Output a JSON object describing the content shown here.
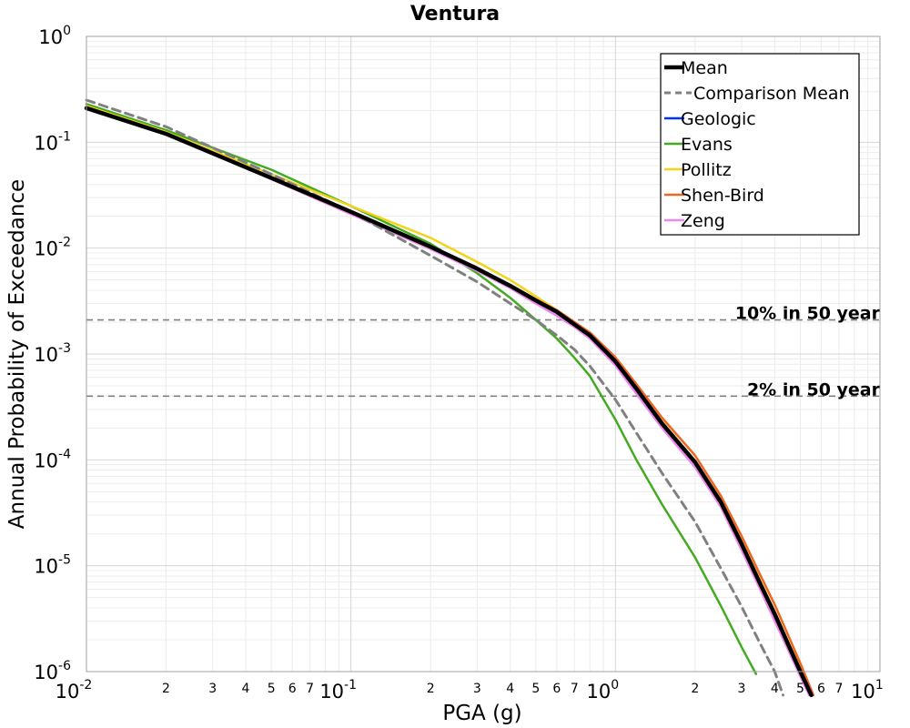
{
  "chart_data": {
    "type": "line",
    "title": "Ventura",
    "xlabel": "PGA (g)",
    "ylabel": "Annual Probability of Exceedance",
    "x_scale": "log",
    "y_scale": "log",
    "xlim": [
      0.01,
      10
    ],
    "ylim": [
      1e-06,
      1
    ],
    "grid": true,
    "legend_position": "top-right",
    "x_major_ticks": [
      {
        "value": 0.01,
        "base": "10",
        "exp": "-2"
      },
      {
        "value": 0.1,
        "base": "10",
        "exp": "-1"
      },
      {
        "value": 1,
        "base": "10",
        "exp": "0"
      },
      {
        "value": 10,
        "base": "10",
        "exp": "1"
      }
    ],
    "x_minor_tick_labels": [
      "2",
      "3",
      "4",
      "5",
      "6",
      "7"
    ],
    "y_major_ticks": [
      {
        "value": 1,
        "base": "10",
        "exp": "0"
      },
      {
        "value": 0.1,
        "base": "10",
        "exp": "-1"
      },
      {
        "value": 0.01,
        "base": "10",
        "exp": "-2"
      },
      {
        "value": 0.001,
        "base": "10",
        "exp": "-3"
      },
      {
        "value": 0.0001,
        "base": "10",
        "exp": "-4"
      },
      {
        "value": 1e-05,
        "base": "10",
        "exp": "-5"
      },
      {
        "value": 1e-06,
        "base": "10",
        "exp": "-6"
      }
    ],
    "reference_lines": [
      {
        "label": "10% in 50 year",
        "y": 0.0021,
        "color": "#808080"
      },
      {
        "label": "2% in 50 year",
        "y": 0.0004,
        "color": "#808080"
      }
    ],
    "series": [
      {
        "name": "Geologic",
        "color": "#0033ff",
        "width": 2.5,
        "dash": false,
        "x": [
          0.01,
          0.02,
          0.05,
          0.1,
          0.2,
          0.3,
          0.4,
          0.5,
          0.6,
          0.7,
          0.8,
          1.0,
          1.2,
          1.5,
          2.0,
          2.5,
          3.0,
          3.5,
          4.0,
          4.5,
          5.0,
          5.5
        ],
        "y": [
          0.21,
          0.12,
          0.046,
          0.022,
          0.0105,
          0.0064,
          0.0044,
          0.0032,
          0.0025,
          0.0019,
          0.0015,
          0.00085,
          0.00046,
          0.00022,
          9.5e-05,
          4e-05,
          1.6e-05,
          7e-06,
          3.5e-06,
          1.8e-06,
          1.1e-06,
          6e-07
        ]
      },
      {
        "name": "Evans",
        "color": "#44aa22",
        "width": 2.5,
        "dash": false,
        "x": [
          0.01,
          0.02,
          0.05,
          0.1,
          0.2,
          0.3,
          0.4,
          0.5,
          0.6,
          0.7,
          0.8,
          1.0,
          1.2,
          1.5,
          2.0,
          2.5,
          3.0,
          3.4
        ],
        "y": [
          0.23,
          0.13,
          0.055,
          0.025,
          0.011,
          0.0058,
          0.0034,
          0.0021,
          0.0014,
          0.00092,
          0.00062,
          0.00024,
          0.0001,
          3.8e-05,
          1.2e-05,
          4.2e-06,
          1.7e-06,
          9.5e-07
        ]
      },
      {
        "name": "Pollitz",
        "color": "#f2d41a",
        "width": 2.5,
        "dash": false,
        "x": [
          0.01,
          0.02,
          0.05,
          0.1,
          0.2,
          0.3,
          0.4,
          0.5,
          0.6,
          0.7,
          0.8,
          1.0,
          1.2,
          1.5,
          2.0,
          2.5,
          3.0,
          3.5,
          4.0,
          4.5,
          5.0,
          5.5
        ],
        "y": [
          0.22,
          0.125,
          0.05,
          0.025,
          0.0125,
          0.0074,
          0.005,
          0.0035,
          0.0026,
          0.002,
          0.0015,
          0.00088,
          0.00048,
          0.00023,
          9.8e-05,
          4.2e-05,
          1.7e-05,
          7.5e-06,
          3.7e-06,
          1.9e-06,
          1.1e-06,
          6e-07
        ]
      },
      {
        "name": "Shen-Bird",
        "color": "#ee6622",
        "width": 2.5,
        "dash": false,
        "x": [
          0.01,
          0.02,
          0.05,
          0.1,
          0.2,
          0.3,
          0.4,
          0.5,
          0.6,
          0.7,
          0.8,
          1.0,
          1.2,
          1.5,
          2.0,
          2.5,
          3.0,
          3.5,
          4.0,
          4.5,
          5.0,
          5.6
        ],
        "y": [
          0.21,
          0.12,
          0.045,
          0.021,
          0.01,
          0.0064,
          0.0045,
          0.0033,
          0.0026,
          0.002,
          0.0016,
          0.00093,
          0.00052,
          0.00025,
          0.00011,
          4.6e-05,
          1.9e-05,
          8.5e-06,
          4.3e-06,
          2.2e-06,
          1.2e-06,
          6e-07
        ]
      },
      {
        "name": "Zeng",
        "color": "#ee88ee",
        "width": 2.5,
        "dash": false,
        "x": [
          0.01,
          0.02,
          0.05,
          0.1,
          0.2,
          0.3,
          0.4,
          0.5,
          0.6,
          0.7,
          0.8,
          1.0,
          1.2,
          1.5,
          2.0,
          2.5,
          3.0,
          3.5,
          4.0,
          4.5,
          5.0,
          5.4
        ],
        "y": [
          0.21,
          0.12,
          0.045,
          0.021,
          0.0098,
          0.0061,
          0.0042,
          0.003,
          0.0023,
          0.0018,
          0.0014,
          0.00078,
          0.00042,
          0.0002,
          8.5e-05,
          3.6e-05,
          1.4e-05,
          6.2e-06,
          3e-06,
          1.6e-06,
          9e-07,
          6e-07
        ]
      },
      {
        "name": "Comparison Mean",
        "color": "#808080",
        "width": 3,
        "dash": true,
        "x": [
          0.01,
          0.02,
          0.05,
          0.1,
          0.2,
          0.3,
          0.4,
          0.5,
          0.6,
          0.7,
          0.8,
          1.0,
          1.2,
          1.5,
          2.0,
          2.5,
          3.0,
          3.5,
          4.0,
          4.3
        ],
        "y": [
          0.25,
          0.14,
          0.05,
          0.022,
          0.0085,
          0.0048,
          0.003,
          0.0021,
          0.0015,
          0.0011,
          0.00077,
          0.00037,
          0.00018,
          7.5e-05,
          2.6e-05,
          9.5e-06,
          4.1e-06,
          1.9e-06,
          1e-06,
          6e-07
        ]
      },
      {
        "name": "Mean",
        "color": "#000000",
        "width": 4.5,
        "dash": false,
        "x": [
          0.01,
          0.02,
          0.05,
          0.1,
          0.2,
          0.3,
          0.4,
          0.5,
          0.6,
          0.7,
          0.8,
          1.0,
          1.2,
          1.5,
          2.0,
          2.5,
          3.0,
          3.5,
          4.0,
          4.5,
          5.0,
          5.5
        ],
        "y": [
          0.21,
          0.12,
          0.046,
          0.022,
          0.0103,
          0.0064,
          0.0044,
          0.0032,
          0.0025,
          0.0019,
          0.0015,
          0.00085,
          0.00047,
          0.00022,
          9.5e-05,
          4e-05,
          1.6e-05,
          7e-06,
          3.5e-06,
          1.8e-06,
          1e-06,
          6e-07
        ]
      }
    ],
    "legend_order": [
      "Mean",
      "Comparison Mean",
      "Geologic",
      "Evans",
      "Pollitz",
      "Shen-Bird",
      "Zeng"
    ]
  }
}
